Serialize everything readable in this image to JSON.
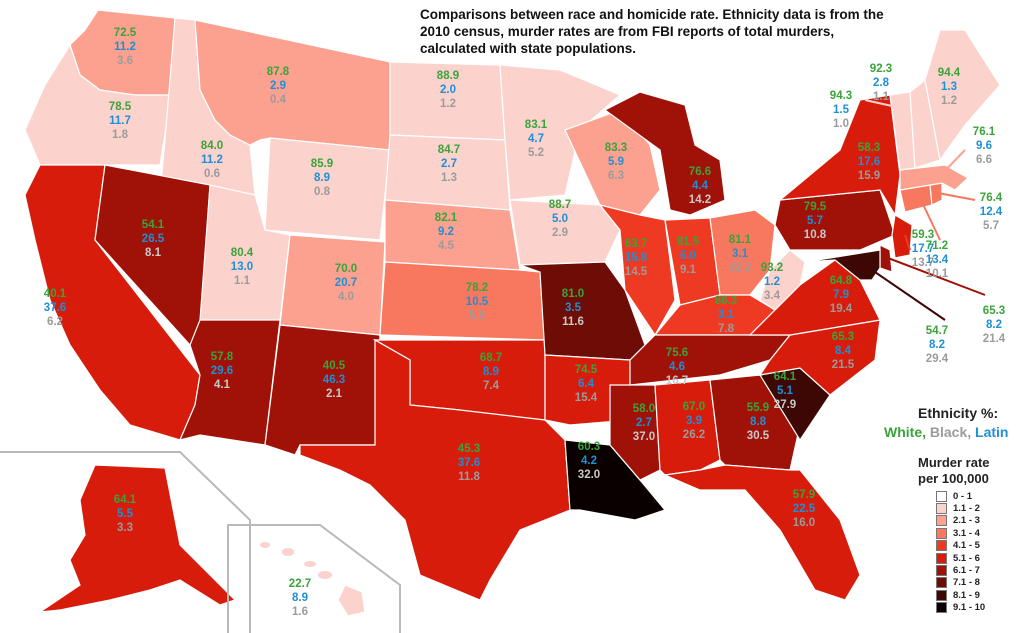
{
  "title": "Comparisons between race and homicide rate. Ethnicity data is from the 2010 census, murder rates are from FBI reports of total murders, calculated with state populations.",
  "ethnicity_legend": {
    "title": "Ethnicity %:",
    "white": "White,",
    "black": "Black,",
    "latin": "Latin",
    "white_color": "#3aa33a",
    "black_color": "#9b9b9b",
    "latin_color": "#1f8fd6"
  },
  "murder_legend": {
    "title_line1": "Murder rate",
    "title_line2": "per 100,000",
    "bins": [
      {
        "label": "0 - 1",
        "color": "#ffffff"
      },
      {
        "label": "1.1 - 2",
        "color": "#fcd2cc"
      },
      {
        "label": "2.1 - 3",
        "color": "#fca08f"
      },
      {
        "label": "3.1 - 4",
        "color": "#f7785f"
      },
      {
        "label": "4.1 - 5",
        "color": "#ee3a22"
      },
      {
        "label": "5.1 - 6",
        "color": "#d81c0c"
      },
      {
        "label": "6.1 - 7",
        "color": "#a01208"
      },
      {
        "label": "7.1 - 8",
        "color": "#6e0c06"
      },
      {
        "label": "8.1 - 9",
        "color": "#3d0704"
      },
      {
        "label": "9.1 - 10",
        "color": "#0a0000"
      }
    ]
  },
  "states": {
    "WA": {
      "white": "72.5",
      "latin": "11.2",
      "black": "3.6",
      "murder_bin": 2
    },
    "OR": {
      "white": "78.5",
      "latin": "11.7",
      "black": "1.8",
      "murder_bin": 1
    },
    "CA": {
      "white": "40.1",
      "latin": "37.6",
      "black": "6.2",
      "murder_bin": 5
    },
    "ID": {
      "white": "84.0",
      "latin": "11.2",
      "black": "0.6",
      "murder_bin": 1
    },
    "NV": {
      "white": "54.1",
      "latin": "26.5",
      "black": "8.1",
      "murder_bin": 6
    },
    "MT": {
      "white": "87.8",
      "latin": "2.9",
      "black": "0.4",
      "murder_bin": 2
    },
    "WY": {
      "white": "85.9",
      "latin": "8.9",
      "black": "0.8",
      "murder_bin": 1
    },
    "UT": {
      "white": "80.4",
      "latin": "13.0",
      "black": "1.1",
      "murder_bin": 1
    },
    "AZ": {
      "white": "57.8",
      "latin": "29.6",
      "black": "4.1",
      "murder_bin": 6
    },
    "CO": {
      "white": "70.0",
      "latin": "20.7",
      "black": "4.0",
      "murder_bin": 2
    },
    "NM": {
      "white": "40.5",
      "latin": "46.3",
      "black": "2.1",
      "murder_bin": 6
    },
    "ND": {
      "white": "88.9",
      "latin": "2.0",
      "black": "1.2",
      "murder_bin": 1
    },
    "SD": {
      "white": "84.7",
      "latin": "2.7",
      "black": "1.3",
      "murder_bin": 1
    },
    "NE": {
      "white": "82.1",
      "latin": "9.2",
      "black": "4.5",
      "murder_bin": 2
    },
    "KS": {
      "white": "78.2",
      "latin": "10.5",
      "black": "5.9",
      "murder_bin": 3
    },
    "OK": {
      "white": "68.7",
      "latin": "8.9",
      "black": "7.4",
      "murder_bin": 5
    },
    "TX": {
      "white": "45.3",
      "latin": "37.6",
      "black": "11.8",
      "murder_bin": 5
    },
    "MN": {
      "white": "83.1",
      "latin": "4.7",
      "black": "5.2",
      "murder_bin": 1
    },
    "IA": {
      "white": "88.7",
      "latin": "5.0",
      "black": "2.9",
      "murder_bin": 1
    },
    "MO": {
      "white": "81.0",
      "latin": "3.5",
      "black": "11.6",
      "murder_bin": 7
    },
    "AR": {
      "white": "74.5",
      "latin": "6.4",
      "black": "15.4",
      "murder_bin": 5
    },
    "LA": {
      "white": "60.3",
      "latin": "4.2",
      "black": "32.0",
      "murder_bin": 9
    },
    "WI": {
      "white": "83.3",
      "latin": "5.9",
      "black": "6.3",
      "murder_bin": 2
    },
    "IL": {
      "white": "63.7",
      "latin": "15.8",
      "black": "14.5",
      "murder_bin": 4
    },
    "MI": {
      "white": "76.6",
      "latin": "4.4",
      "black": "14.2",
      "murder_bin": 6
    },
    "IN": {
      "white": "81.5",
      "latin": "6.0",
      "black": "9.1",
      "murder_bin": 4
    },
    "OH": {
      "white": "81.1",
      "latin": "3.1",
      "black": "12.2",
      "murder_bin": 3
    },
    "KY": {
      "white": "86.3",
      "latin": "3.1",
      "black": "7.8",
      "murder_bin": 4
    },
    "TN": {
      "white": "75.6",
      "latin": "4.6",
      "black": "16.7",
      "murder_bin": 6
    },
    "MS": {
      "white": "58.0",
      "latin": "2.7",
      "black": "37.0",
      "murder_bin": 6
    },
    "AL": {
      "white": "67.0",
      "latin": "3.9",
      "black": "26.2",
      "murder_bin": 5
    },
    "GA": {
      "white": "55.9",
      "latin": "8.8",
      "black": "30.5",
      "murder_bin": 6
    },
    "FL": {
      "white": "57.9",
      "latin": "22.5",
      "black": "16.0",
      "murder_bin": 5
    },
    "SC": {
      "white": "64.1",
      "latin": "5.1",
      "black": "27.9",
      "murder_bin": 8
    },
    "NC": {
      "white": "65.3",
      "latin": "8.4",
      "black": "21.5",
      "murder_bin": 5
    },
    "VA": {
      "white": "64.8",
      "latin": "7.9",
      "black": "19.4",
      "murder_bin": 5
    },
    "WV": {
      "white": "93.2",
      "latin": "1.2",
      "black": "3.4",
      "murder_bin": 1
    },
    "PA": {
      "white": "79.5",
      "latin": "5.7",
      "black": "10.8",
      "murder_bin": 6
    },
    "NY": {
      "white": "58.3",
      "latin": "17.6",
      "black": "15.9",
      "murder_bin": 5
    },
    "NJ": {
      "white": "59.3",
      "latin": "17.7",
      "black": "13.7",
      "murder_bin": 5
    },
    "DE": {
      "white": "65.3",
      "latin": "8.2",
      "black": "21.4",
      "murder_bin": 6
    },
    "MD": {
      "white": "54.7",
      "latin": "8.2",
      "black": "29.4",
      "murder_bin": 8
    },
    "CT": {
      "white": "71.2",
      "latin": "13.4",
      "black": "10.1",
      "murder_bin": 3
    },
    "RI": {
      "white": "76.4",
      "latin": "12.4",
      "black": "5.7",
      "murder_bin": 3
    },
    "MA": {
      "white": "76.1",
      "latin": "9.6",
      "black": "6.6",
      "murder_bin": 2
    },
    "VT": {
      "white": "94.3",
      "latin": "1.5",
      "black": "1.0",
      "murder_bin": 1
    },
    "NH": {
      "white": "92.3",
      "latin": "2.8",
      "black": "1.1",
      "murder_bin": 1
    },
    "ME": {
      "white": "94.4",
      "latin": "1.3",
      "black": "1.2",
      "murder_bin": 1
    },
    "AK": {
      "white": "64.1",
      "latin": "5.5",
      "black": "3.3",
      "murder_bin": 5
    },
    "HI": {
      "white": "22.7",
      "latin": "8.9",
      "black": "1.6",
      "murder_bin": 1
    }
  }
}
